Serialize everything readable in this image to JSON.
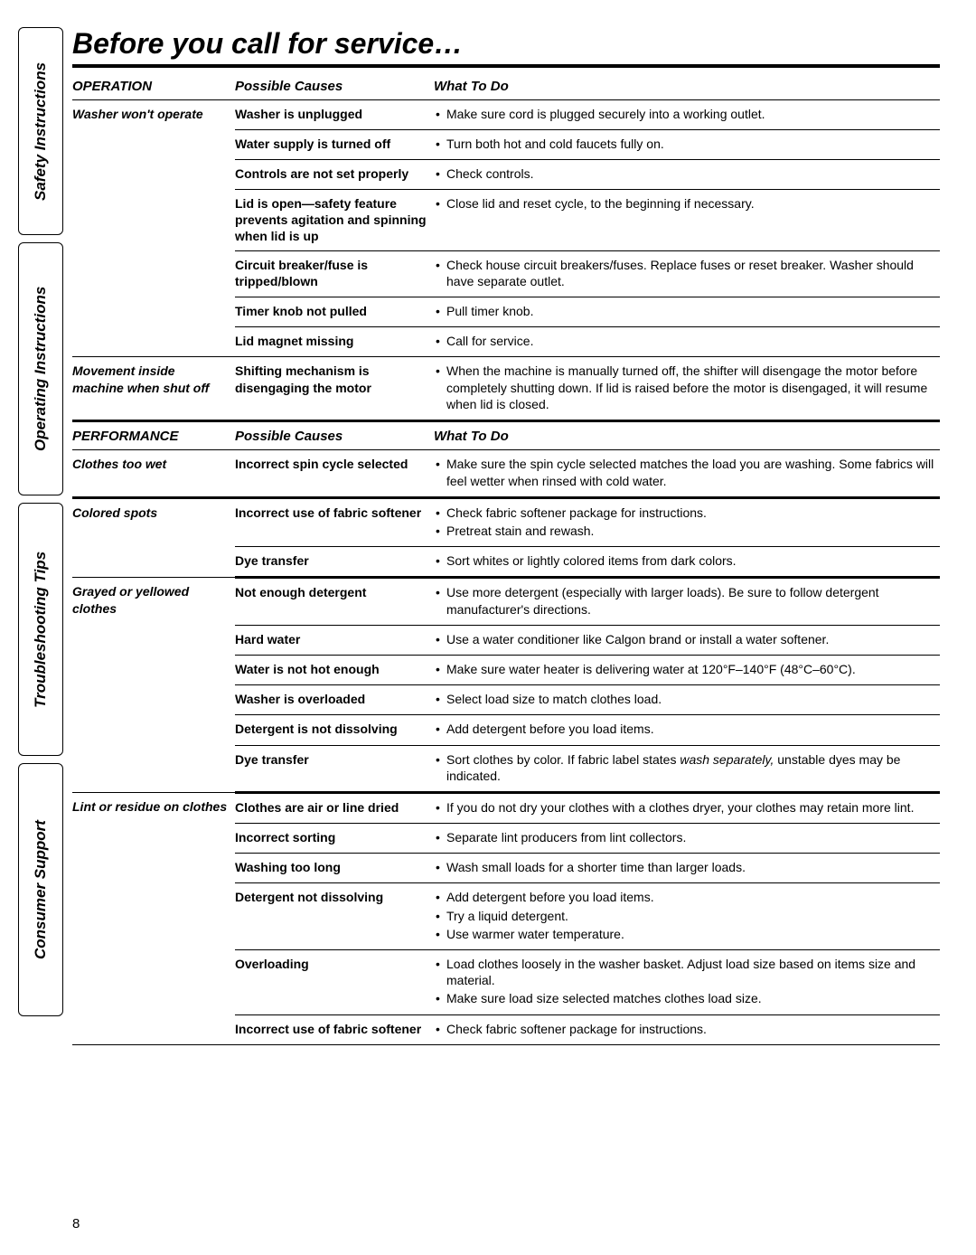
{
  "page": {
    "title": "Before you call for service…",
    "number": "8"
  },
  "tabs": {
    "safety": "Safety Instructions",
    "operating": "Operating Instructions",
    "troubleshooting": "Troubleshooting Tips",
    "support": "Consumer Support"
  },
  "headers": {
    "operation": "OPERATION",
    "performance": "PERFORMANCE",
    "causes": "Possible Causes",
    "what": "What To Do"
  },
  "op": {
    "wont_operate": {
      "label": "Washer won't operate",
      "unplugged": {
        "cause": "Washer is unplugged",
        "fix": "Make sure cord is plugged securely into a working outlet."
      },
      "water_off": {
        "cause": "Water supply is turned off",
        "fix": "Turn both hot and cold faucets fully on."
      },
      "controls": {
        "cause": "Controls are not set properly",
        "fix": "Check controls."
      },
      "lid_open": {
        "cause": "Lid is open—safety feature prevents agitation and spinning when lid is up",
        "fix": "Close lid and reset cycle, to the beginning if necessary."
      },
      "breaker": {
        "cause": "Circuit breaker/fuse is tripped/blown",
        "fix": "Check house circuit breakers/fuses. Replace fuses or reset breaker. Washer should have separate outlet."
      },
      "timer": {
        "cause": "Timer knob not pulled",
        "fix": "Pull timer knob."
      },
      "magnet": {
        "cause": "Lid magnet missing",
        "fix": "Call for service."
      }
    },
    "movement": {
      "label": "Movement inside machine when shut off",
      "cause": "Shifting mechanism is disengaging the motor",
      "fix": "When the machine is manually turned off, the shifter will disengage the motor before completely shutting down. If lid is raised before the motor is disengaged, it will resume when lid is closed."
    }
  },
  "perf": {
    "too_wet": {
      "label": "Clothes too wet",
      "cause": "Incorrect spin cycle selected",
      "fix": "Make sure the spin cycle selected matches the load you are washing. Some fabrics will feel wetter when rinsed with cold water."
    },
    "spots": {
      "label": "Colored spots",
      "softener": {
        "cause": "Incorrect use of fabric softener",
        "fix1": "Check fabric softener package for instructions.",
        "fix2": "Pretreat stain and rewash."
      },
      "dye": {
        "cause": "Dye transfer",
        "fix": "Sort whites or lightly colored items from dark colors."
      }
    },
    "grayed": {
      "label": "Grayed or yellowed clothes",
      "detergent": {
        "cause": "Not enough detergent",
        "fix": "Use more detergent (especially with larger loads). Be sure to follow detergent manufacturer's directions."
      },
      "hard": {
        "cause": "Hard water",
        "fix": "Use a water conditioner like Calgon brand or install a water softener."
      },
      "not_hot": {
        "cause": "Water is not hot enough",
        "fix": "Make sure water heater is delivering water at 120°F–140°F (48°C–60°C)."
      },
      "overload": {
        "cause": "Washer is overloaded",
        "fix": "Select load size to match clothes load."
      },
      "dissolve": {
        "cause": "Detergent is not dissolving",
        "fix": "Add detergent before you load items."
      },
      "dye": {
        "cause": "Dye transfer",
        "fix_a": "Sort clothes by color. If fabric label states ",
        "fix_em": "wash separately,",
        "fix_b": " unstable dyes may be indicated."
      }
    },
    "lint": {
      "label": "Lint or residue on clothes",
      "air": {
        "cause": "Clothes are air or line dried",
        "fix": "If you do not dry your clothes with a clothes dryer, your clothes may retain more lint."
      },
      "sort": {
        "cause": "Incorrect sorting",
        "fix": "Separate lint producers from lint collectors."
      },
      "long": {
        "cause": "Washing too long",
        "fix": "Wash small loads for a shorter time than larger loads."
      },
      "dissolve": {
        "cause": "Detergent not dissolving",
        "fix1": "Add detergent before you load items.",
        "fix2": "Try a liquid detergent.",
        "fix3": "Use warmer water temperature."
      },
      "overload": {
        "cause": "Overloading",
        "fix1": "Load clothes loosely in the washer basket. Adjust load size based on items size and material.",
        "fix2": "Make sure load size selected matches clothes load size."
      },
      "softener": {
        "cause": "Incorrect use of fabric softener",
        "fix": "Check fabric softener package for instructions."
      }
    }
  }
}
